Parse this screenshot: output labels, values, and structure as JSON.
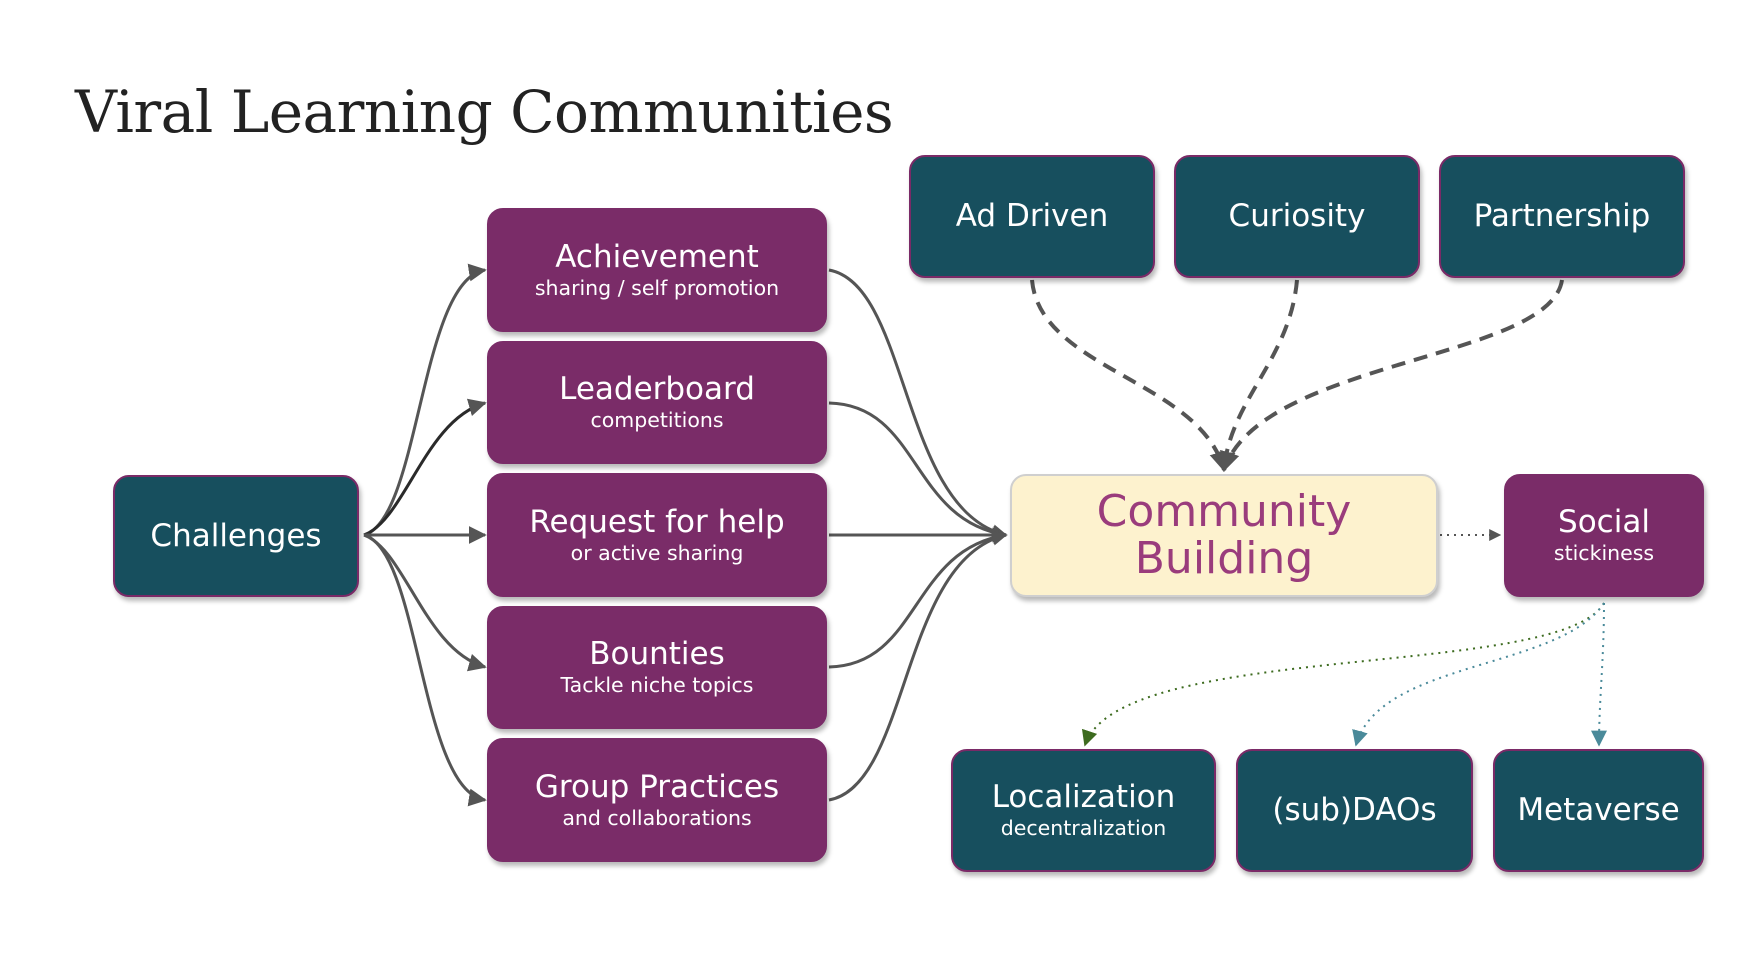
{
  "title": "Viral Learning Communities",
  "colors": {
    "teal": "#174f5e",
    "plum": "#7a2c68",
    "hub_fill": "#fdf2ce",
    "hub_text": "#9a3c7c",
    "arrow": "#555555",
    "dotted_green": "#3d6b1f",
    "dotted_teal": "#4a8a9a"
  },
  "nodes": {
    "challenges": {
      "label": "Challenges"
    },
    "achievement": {
      "label": "Achievement",
      "sub": "sharing / self promotion"
    },
    "leaderboard": {
      "label": "Leaderboard",
      "sub": "competitions"
    },
    "request": {
      "label": "Request for help",
      "sub": "or active sharing"
    },
    "bounties": {
      "label": "Bounties",
      "sub": "Tackle niche topics"
    },
    "group": {
      "label": "Group Practices",
      "sub": "and collaborations"
    },
    "ad_driven": {
      "label": "Ad Driven"
    },
    "curiosity": {
      "label": "Curiosity"
    },
    "partnership": {
      "label": "Partnership"
    },
    "community": {
      "label": "Community Building"
    },
    "social": {
      "label": "Social",
      "sub": "stickiness"
    },
    "localization": {
      "label": "Localization",
      "sub": "decentralization"
    },
    "subdaos": {
      "label": "(sub)DAOs"
    },
    "metaverse": {
      "label": "Metaverse"
    }
  },
  "edges": [
    {
      "from": "challenges",
      "to": "achievement",
      "style": "solid"
    },
    {
      "from": "challenges",
      "to": "leaderboard",
      "style": "solid"
    },
    {
      "from": "challenges",
      "to": "request",
      "style": "solid"
    },
    {
      "from": "challenges",
      "to": "bounties",
      "style": "solid"
    },
    {
      "from": "challenges",
      "to": "group",
      "style": "solid"
    },
    {
      "from": "achievement",
      "to": "community",
      "style": "solid"
    },
    {
      "from": "leaderboard",
      "to": "community",
      "style": "solid"
    },
    {
      "from": "request",
      "to": "community",
      "style": "solid"
    },
    {
      "from": "bounties",
      "to": "community",
      "style": "solid"
    },
    {
      "from": "group",
      "to": "community",
      "style": "solid"
    },
    {
      "from": "ad_driven",
      "to": "community",
      "style": "dashed"
    },
    {
      "from": "curiosity",
      "to": "community",
      "style": "dashed"
    },
    {
      "from": "partnership",
      "to": "community",
      "style": "dashed"
    },
    {
      "from": "community",
      "to": "social",
      "style": "dotted"
    },
    {
      "from": "social",
      "to": "localization",
      "style": "dotted"
    },
    {
      "from": "social",
      "to": "subdaos",
      "style": "dotted"
    },
    {
      "from": "social",
      "to": "metaverse",
      "style": "dotted"
    }
  ]
}
